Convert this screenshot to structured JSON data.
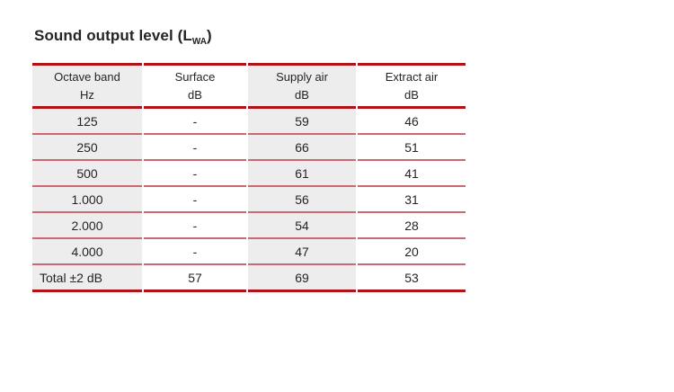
{
  "title": {
    "prefix": "Sound output level (L",
    "subscript": "WA",
    "suffix": ")"
  },
  "table": {
    "header": [
      {
        "line1": "Octave band",
        "line2": "Hz"
      },
      {
        "line1": "Surface",
        "line2": "dB"
      },
      {
        "line1": "Supply air",
        "line2": "dB"
      },
      {
        "line1": "Extract air",
        "line2": "dB"
      }
    ],
    "rows": [
      [
        "125",
        "-",
        "59",
        "46"
      ],
      [
        "250",
        "-",
        "66",
        "51"
      ],
      [
        "500",
        "-",
        "61",
        "41"
      ],
      [
        "1.000",
        "-",
        "56",
        "31"
      ],
      [
        "2.000",
        "-",
        "54",
        "28"
      ],
      [
        "4.000",
        "-",
        "47",
        "20"
      ],
      [
        "Total ±2 dB",
        "57",
        "69",
        "53"
      ]
    ]
  },
  "colors": {
    "thick_rule_red": "#b11218",
    "thin_rule_red": "#c96a70",
    "shaded_column": "#ededee",
    "text": "#262324",
    "background": "#ffffff"
  }
}
